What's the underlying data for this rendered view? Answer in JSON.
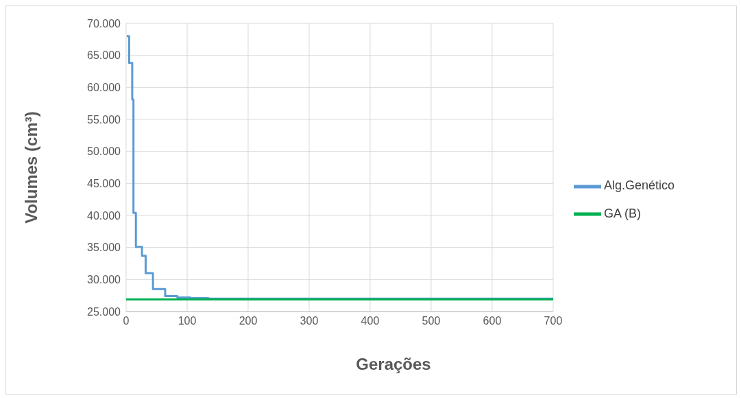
{
  "chart_data": {
    "type": "step",
    "xlabel": "Gerações",
    "ylabel": "Volumes (cm³)",
    "xlim": [
      0,
      700
    ],
    "xticks": [
      0,
      100,
      200,
      300,
      400,
      500,
      600,
      700
    ],
    "ylim": [
      25000,
      70000
    ],
    "yticks": [
      {
        "value": 25000,
        "label": "25.000"
      },
      {
        "value": 30000,
        "label": "30.000"
      },
      {
        "value": 35000,
        "label": "35.000"
      },
      {
        "value": 40000,
        "label": "40.000"
      },
      {
        "value": 45000,
        "label": "45.000"
      },
      {
        "value": 50000,
        "label": "50.000"
      },
      {
        "value": 55000,
        "label": "55.000"
      },
      {
        "value": 60000,
        "label": "60.000"
      },
      {
        "value": 65000,
        "label": "65.000"
      },
      {
        "value": 70000,
        "label": "70.000"
      }
    ],
    "grid": true,
    "legend": "right",
    "marker": "none",
    "line_style": "solid",
    "series": [
      {
        "name": "Alg.Genético",
        "color": "#5b9bd5",
        "x": [
          1,
          5,
          10,
          12,
          16,
          26,
          32,
          44,
          64,
          84,
          105,
          135,
          700
        ],
        "values": [
          68000,
          63800,
          58100,
          40400,
          35100,
          33700,
          31000,
          28500,
          27400,
          27200,
          27100,
          27000,
          27000
        ]
      },
      {
        "name": "GA (B)",
        "color": "#00b050",
        "x": [
          0,
          700
        ],
        "values": [
          26900,
          26900
        ]
      }
    ]
  }
}
